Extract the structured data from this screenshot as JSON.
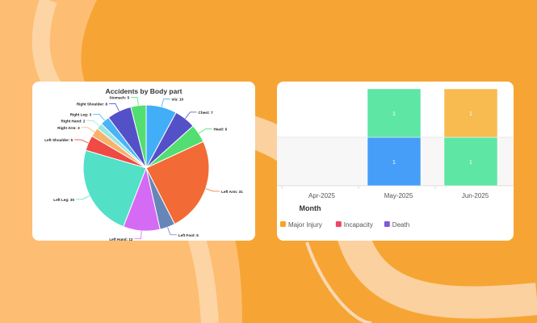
{
  "chart_data": [
    {
      "type": "pie",
      "title": "Accidents by Body part",
      "slices": [
        {
          "label": "n/a",
          "value": 10,
          "color": "#42AEF8"
        },
        {
          "label": "Chest",
          "value": 7,
          "color": "#5450C8"
        },
        {
          "label": "Head",
          "value": 6,
          "color": "#52DE70"
        },
        {
          "label": "Left Arm",
          "value": 31,
          "color": "#F26A35"
        },
        {
          "label": "Left Foot",
          "value": 5,
          "color": "#6786B8"
        },
        {
          "label": "Left Hand",
          "value": 12,
          "color": "#D56AF5"
        },
        {
          "label": "Left Leg",
          "value": 30,
          "color": "#52E0C6"
        },
        {
          "label": "Left Shoulder",
          "value": 5,
          "color": "#EF4A45"
        },
        {
          "label": "Right Arm",
          "value": 3,
          "color": "#F8B36A"
        },
        {
          "label": "Right Hand",
          "value": 2,
          "color": "#9AE6E4"
        },
        {
          "label": "Right Leg",
          "value": 3,
          "color": "#4AB4F7"
        },
        {
          "label": "Right Shoulder",
          "value": 8,
          "color": "#5450C8"
        },
        {
          "label": "Stomach",
          "value": 5,
          "color": "#52DE70"
        }
      ]
    },
    {
      "type": "bar",
      "stacked": true,
      "xlabel": "Month",
      "categories": [
        "Apr-2025",
        "May-2025",
        "Jun-2025"
      ],
      "segments": [
        {
          "category": "May-2025",
          "value": 1,
          "color": "#479EF8",
          "label": "1"
        },
        {
          "category": "May-2025",
          "value": 1,
          "color": "#5EE6A5",
          "label": "1"
        },
        {
          "category": "Jun-2025",
          "value": 1,
          "color": "#5EE6A5",
          "label": "1"
        },
        {
          "category": "Jun-2025",
          "value": 1,
          "color": "#F8BB50",
          "label": "1"
        }
      ],
      "ylim": [
        0,
        2
      ],
      "legend": [
        {
          "name": "Major Injury",
          "color": "#F5A623"
        },
        {
          "name": "Incapacity",
          "color": "#EF4466"
        },
        {
          "name": "Death",
          "color": "#7E5BD6"
        }
      ]
    }
  ]
}
